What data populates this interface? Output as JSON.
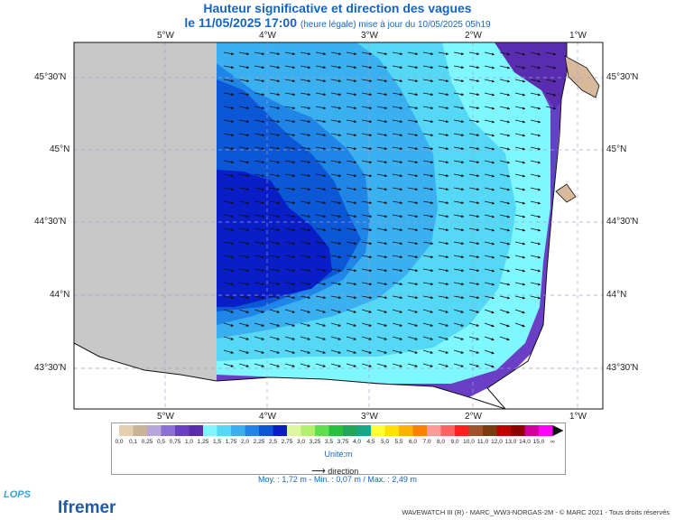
{
  "title": {
    "line1": "Hauteur significative et direction des vagues",
    "line2": "le 11/05/2025 17:00",
    "line2_sub": "(heure légale) mise à jour du 10/05/2025 05h19"
  },
  "axes": {
    "lon_labels": [
      "5°W",
      "4°W",
      "3°W",
      "2°W",
      "1°W"
    ],
    "lat_labels": [
      "45°30'N",
      "45°N",
      "44°30'N",
      "44°N",
      "43°30'N"
    ]
  },
  "legend": {
    "ticks": [
      "0,0",
      "0,1",
      "0,25",
      "0,5",
      "0,75",
      "1,0",
      "1,25",
      "1,5",
      "1,75",
      "2,0",
      "2,25",
      "2,5",
      "2,75",
      "3,0",
      "3,25",
      "3,5",
      "3,75",
      "4,0",
      "4,5",
      "5,0",
      "5,5",
      "6,0",
      "7,0",
      "8,0",
      "9,0",
      "10,0",
      "11,0",
      "12,0",
      "13,0",
      "14,0",
      "15,0",
      "∞"
    ],
    "colors": [
      "#e6cfb0",
      "#cbb39a",
      "#b7a6d9",
      "#8c6fd6",
      "#6a3fc6",
      "#5a2cb0",
      "#7ff7ff",
      "#55d8f5",
      "#3bb0f0",
      "#1f86e8",
      "#0b57d6",
      "#0a1ec8",
      "#dff7a0",
      "#b6f06a",
      "#5ee04a",
      "#27c23d",
      "#1fa85c",
      "#18a888",
      "#ffff33",
      "#ffe000",
      "#ffb000",
      "#ff8000",
      "#ff9a9a",
      "#ff6060",
      "#ff2020",
      "#a0522d",
      "#7a3b10",
      "#c00000",
      "#900000",
      "#d000a0",
      "#ff00ff"
    ],
    "unit": "Unité:m"
  },
  "direction_label": "direction",
  "stats": "Moy. : 1,72 m   -   Min. : 0,07 m / Max. : 2,49 m",
  "footer": "WAVEWATCH III (R) - MARC_WW3-NORGAS-2M - © MARC 2021 - Tous droits réservés",
  "logos": {
    "lops": "LOPS",
    "ifremer": "Ifremer"
  },
  "colors": {
    "land": "#c8c8c8",
    "coast": "#d9b99b",
    "band_0_75": "#6a3fc6",
    "band_1_25": "#7ff7ff",
    "band_1_5": "#55d8f5",
    "band_1_75": "#3bb0f0",
    "band_2_0": "#1f86e8",
    "band_2_25": "#0b57d6",
    "band_2_5": "#0a1ec8"
  }
}
